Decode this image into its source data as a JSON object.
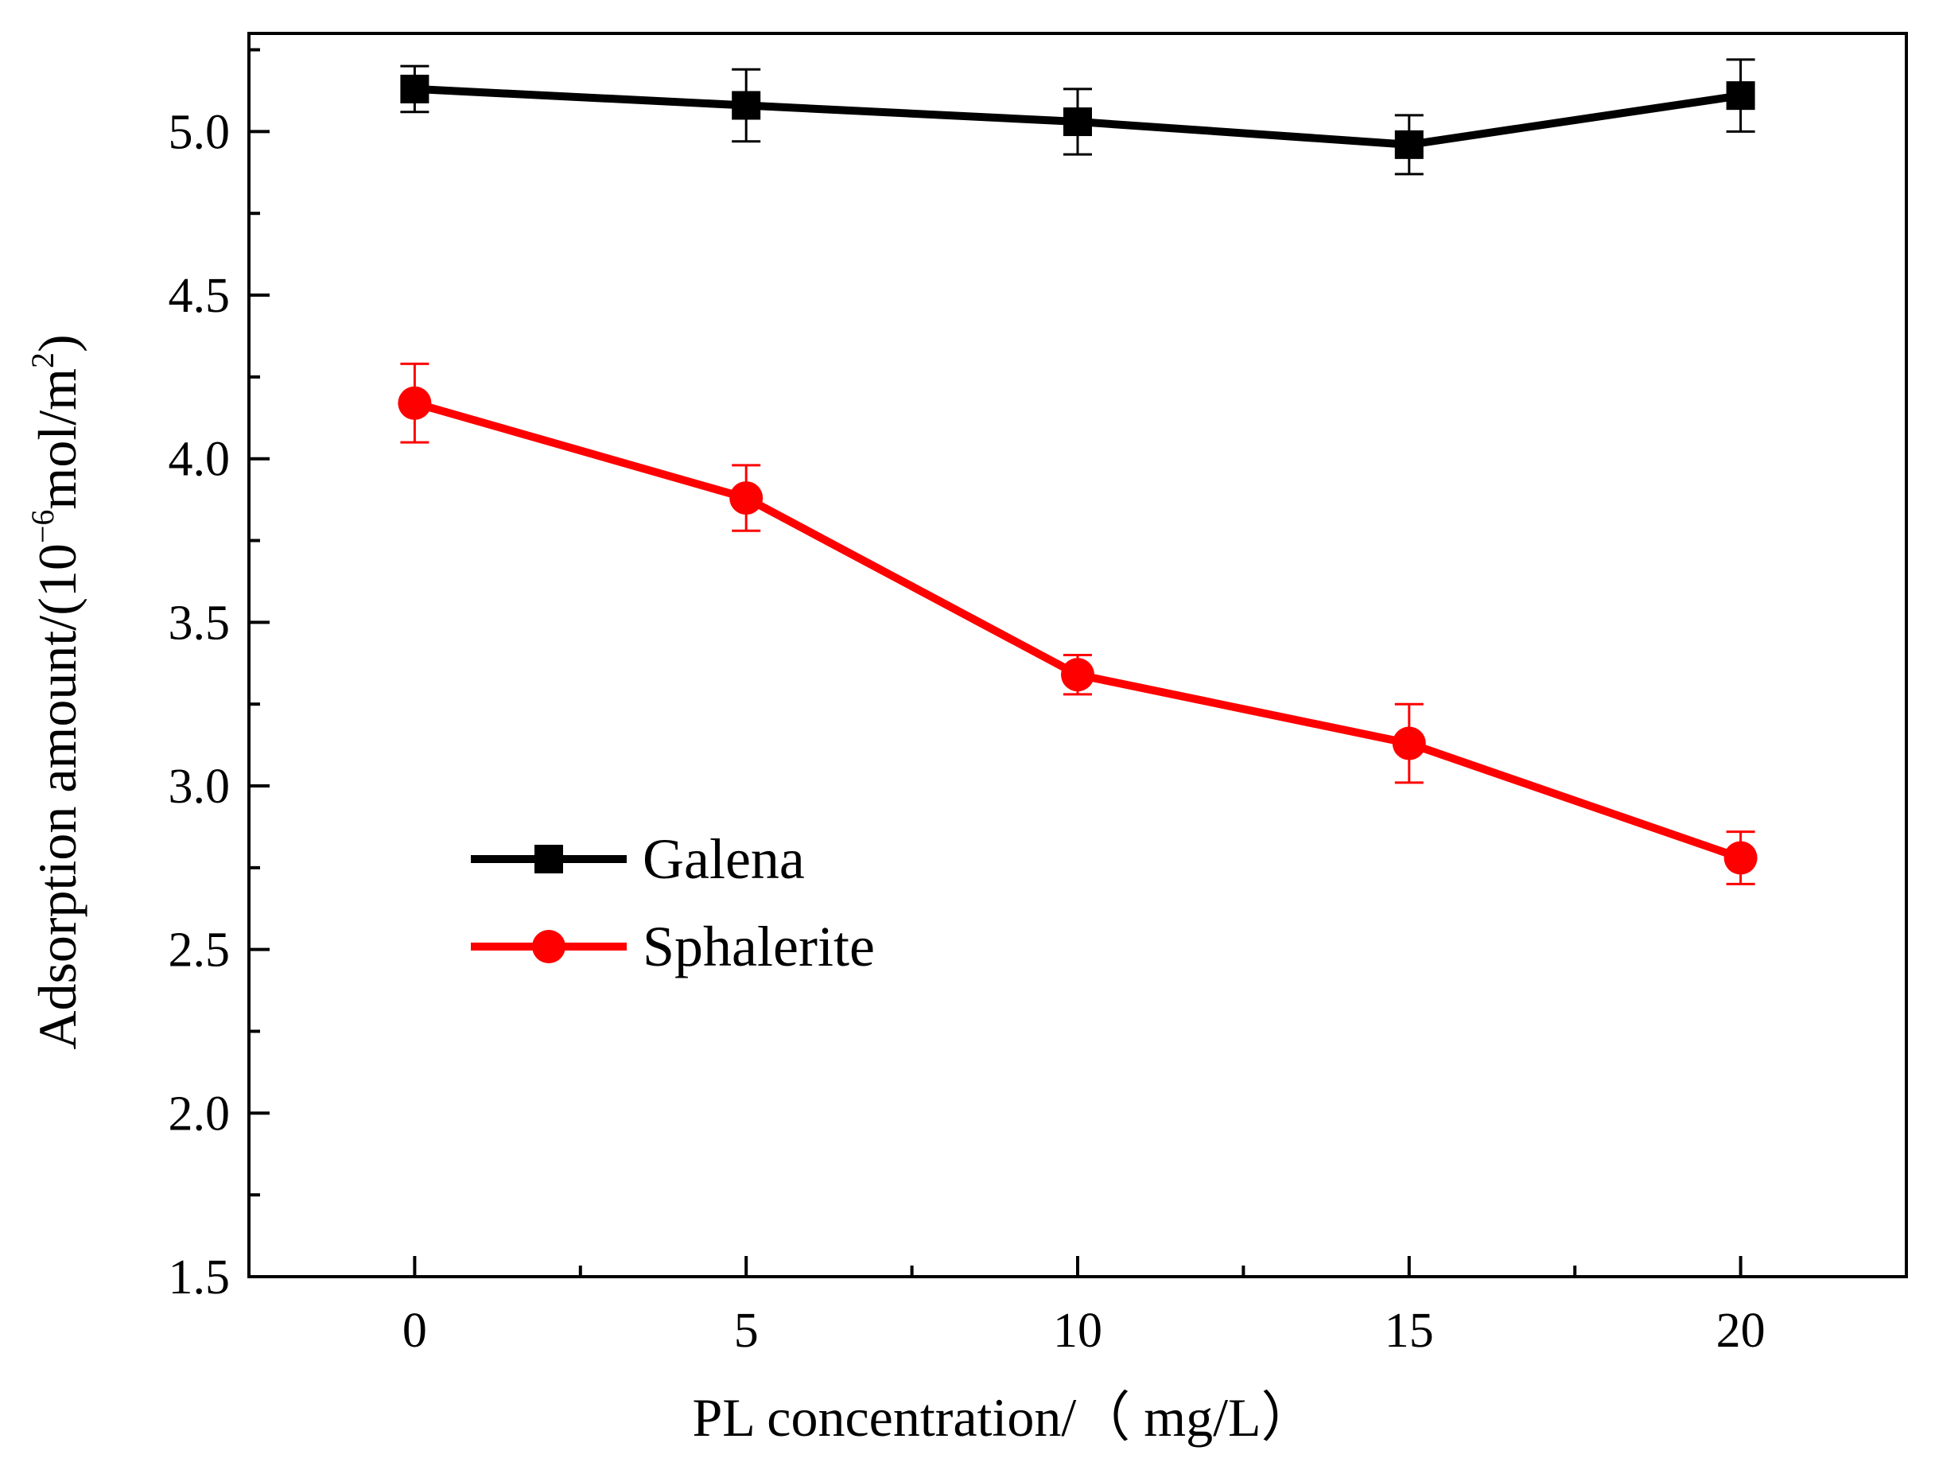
{
  "chart_data": {
    "type": "line",
    "title": "",
    "xlabel": "PL concentration/（ mg/L）",
    "ylabel": {
      "prefix": "Adsorption amount/(10",
      "exp": "−6",
      "mid": "mol/m",
      "exp2": "2",
      "suffix": ")"
    },
    "xlim": [
      -2.5,
      22.5
    ],
    "ylim": [
      1.5,
      5.3
    ],
    "x_ticks": [
      "0",
      "5",
      "10",
      "15",
      "20"
    ],
    "x_tick_values": [
      0,
      5,
      10,
      15,
      20
    ],
    "x_minor_ticks": [
      2.5,
      7.5,
      12.5,
      17.5
    ],
    "y_ticks": [
      "1.5",
      "2.0",
      "2.5",
      "3.0",
      "3.5",
      "4.0",
      "4.5",
      "5.0"
    ],
    "y_tick_values": [
      1.5,
      2.0,
      2.5,
      3.0,
      3.5,
      4.0,
      4.5,
      5.0
    ],
    "y_minor_ticks": [
      1.75,
      2.25,
      2.75,
      3.25,
      3.75,
      4.25,
      4.75,
      5.25
    ],
    "legend_position": "center-left",
    "series": [
      {
        "name": "Galena",
        "color": "#000000",
        "marker": "square",
        "x": [
          0,
          5,
          10,
          15,
          20
        ],
        "y": [
          5.13,
          5.08,
          5.03,
          4.96,
          5.11
        ],
        "err": [
          0.07,
          0.11,
          0.1,
          0.09,
          0.11
        ]
      },
      {
        "name": "Sphalerite",
        "color": "#ff0000",
        "marker": "circle",
        "x": [
          0,
          5,
          10,
          15,
          20
        ],
        "y": [
          4.17,
          3.88,
          3.34,
          3.13,
          2.78
        ],
        "err": [
          0.12,
          0.1,
          0.06,
          0.12,
          0.08
        ]
      }
    ]
  }
}
